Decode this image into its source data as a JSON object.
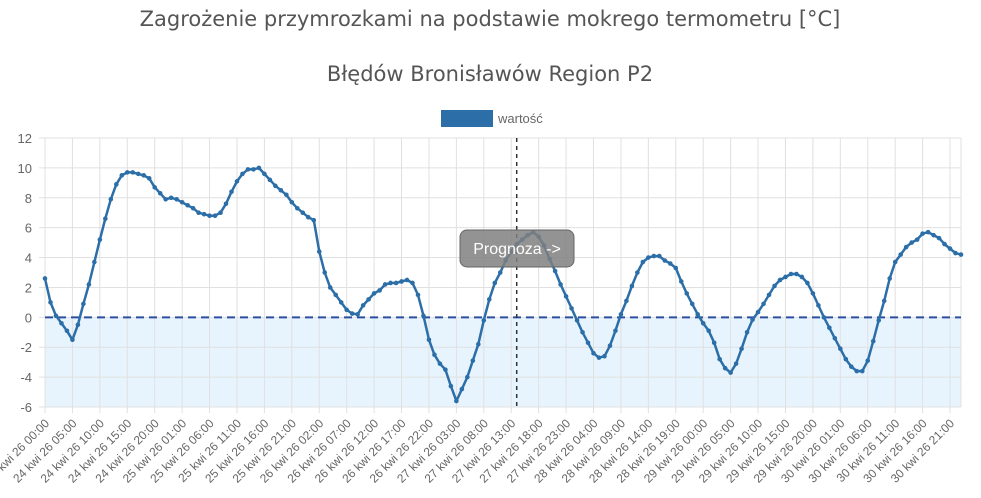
{
  "chart_data": {
    "type": "line",
    "title": "Zagrożenie przymrozkami na podstawie mokrego termometru [°C]",
    "subtitle": "Błędów Bronisławów Region P2",
    "legend": {
      "label": "wartość",
      "placement": "top",
      "color": "#2b6ea8"
    },
    "ylim": [
      -6,
      12
    ],
    "y_ticks": [
      12,
      10,
      8,
      6,
      4,
      2,
      0,
      -2,
      -4,
      -6
    ],
    "grid": true,
    "x_tick_labels": [
      "24 kwi 26 00:00",
      "24 kwi 26 05:00",
      "24 kwi 26 10:00",
      "24 kwi 26 15:00",
      "24 kwi 26 20:00",
      "25 kwi 26 01:00",
      "25 kwi 26 06:00",
      "25 kwi 26 11:00",
      "25 kwi 26 16:00",
      "25 kwi 26 21:00",
      "26 kwi 26 02:00",
      "26 kwi 26 07:00",
      "26 kwi 26 12:00",
      "26 kwi 26 17:00",
      "26 kwi 26 22:00",
      "27 kwi 26 03:00",
      "27 kwi 26 08:00",
      "27 kwi 26 13:00",
      "27 kwi 26 18:00",
      "27 kwi 26 23:00",
      "28 kwi 26 04:00",
      "28 kwi 26 09:00",
      "28 kwi 26 14:00",
      "28 kwi 26 19:00",
      "29 kwi 26 00:00",
      "29 kwi 26 05:00",
      "29 kwi 26 10:00",
      "29 kwi 26 15:00",
      "29 kwi 26 20:00",
      "30 kwi 26 01:00",
      "30 kwi 26 06:00",
      "30 kwi 26 11:00",
      "30 kwi 26 16:00",
      "30 kwi 26 21:00"
    ],
    "values": [
      2.6,
      1.0,
      0.1,
      -0.4,
      -0.9,
      -1.5,
      -0.5,
      0.9,
      2.2,
      3.7,
      5.2,
      6.6,
      7.9,
      8.9,
      9.5,
      9.7,
      9.7,
      9.6,
      9.5,
      9.3,
      8.7,
      8.3,
      7.9,
      8.0,
      7.9,
      7.7,
      7.5,
      7.3,
      7.0,
      6.9,
      6.8,
      6.8,
      7.0,
      7.6,
      8.4,
      9.1,
      9.6,
      9.9,
      9.9,
      10.0,
      9.6,
      9.2,
      8.8,
      8.5,
      8.2,
      7.7,
      7.3,
      7.0,
      6.7,
      6.5,
      4.4,
      3.0,
      2.0,
      1.5,
      1.0,
      0.5,
      0.25,
      0.2,
      0.8,
      1.2,
      1.6,
      1.8,
      2.2,
      2.3,
      2.3,
      2.4,
      2.5,
      2.3,
      1.5,
      0.1,
      -1.5,
      -2.5,
      -3.1,
      -3.5,
      -4.6,
      -5.6,
      -4.8,
      -4.0,
      -2.9,
      -1.8,
      -0.2,
      1.2,
      2.3,
      3.0,
      3.8,
      4.4,
      4.9,
      5.2,
      5.5,
      5.7,
      5.4,
      4.8,
      3.9,
      3.1,
      2.2,
      1.4,
      0.6,
      -0.2,
      -1.0,
      -1.7,
      -2.4,
      -2.7,
      -2.6,
      -1.9,
      -0.9,
      0.2,
      1.1,
      2.1,
      3.0,
      3.7,
      4.0,
      4.1,
      4.1,
      3.8,
      3.6,
      3.3,
      2.4,
      1.6,
      0.9,
      0.2,
      -0.4,
      -0.9,
      -1.7,
      -2.8,
      -3.4,
      -3.7,
      -3.1,
      -2.1,
      -1.0,
      -0.15,
      0.35,
      0.9,
      1.5,
      2.1,
      2.5,
      2.7,
      2.9,
      2.9,
      2.7,
      2.3,
      1.6,
      0.8,
      0.0,
      -0.7,
      -1.4,
      -2.1,
      -2.8,
      -3.3,
      -3.6,
      -3.6,
      -2.9,
      -1.6,
      -0.2,
      1.1,
      2.6,
      3.7,
      4.2,
      4.7,
      5.0,
      5.2,
      5.6,
      5.7,
      5.5,
      5.3,
      4.9,
      4.6,
      4.3,
      4.2
    ],
    "annotations": {
      "forecast_label": "Prognoza ->",
      "zero_line": 0,
      "frost_zone": [
        -6,
        0
      ],
      "frost_zone_color": "#e8f4fd",
      "zero_line_color": "#2b4f9e"
    }
  }
}
